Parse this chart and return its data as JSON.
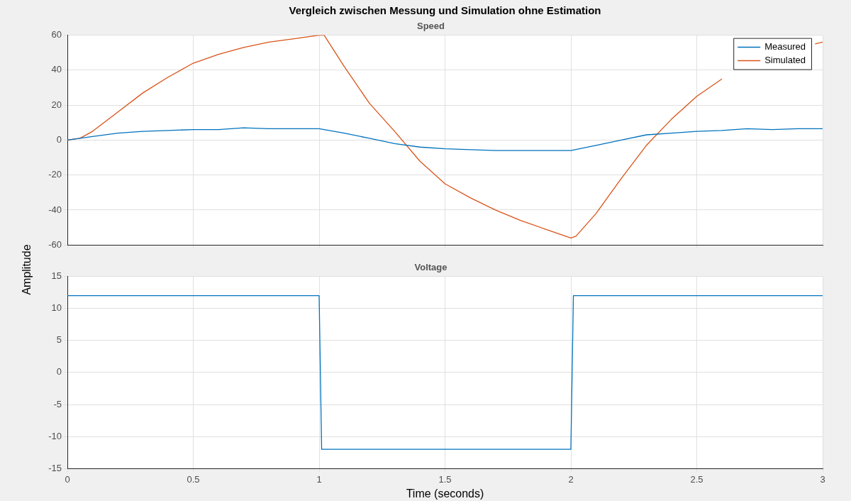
{
  "chart_data": [
    {
      "type": "line",
      "title": "Vergleich zwischen Messung und Simulation ohne Estimation",
      "subtitle": "Speed",
      "ylabel": "Amplitude",
      "xlim": [
        0,
        3
      ],
      "xticks": [
        0,
        0.5,
        1,
        1.5,
        2,
        2.5,
        3
      ],
      "ylim": [
        -60,
        60
      ],
      "yticks": [
        -60,
        -40,
        -20,
        0,
        20,
        40,
        60
      ],
      "grid": true,
      "legend": "top right",
      "tick_labels": "y",
      "line_style": "solid",
      "marker": "none",
      "series": [
        {
          "name": "Measured",
          "color": "#0072bd",
          "x": [
            0,
            0.1,
            0.2,
            0.3,
            0.4,
            0.5,
            0.6,
            0.7,
            0.8,
            0.9,
            1.0,
            1.1,
            1.2,
            1.3,
            1.4,
            1.5,
            1.6,
            1.7,
            1.8,
            1.9,
            2.0,
            2.1,
            2.2,
            2.3,
            2.4,
            2.5,
            2.6,
            2.7,
            2.8,
            2.9,
            3.0
          ],
          "values": [
            0,
            2,
            4,
            5,
            5.5,
            6,
            6,
            7,
            6.5,
            6.5,
            6.5,
            4,
            1,
            -2,
            -4,
            -5,
            -5.5,
            -6,
            -6,
            -6,
            -6,
            -3,
            0,
            3,
            4,
            5,
            5.5,
            6.5,
            6,
            6.5,
            6.5
          ]
        },
        {
          "name": "Simulated",
          "color": "#d95319",
          "x": [
            0,
            0.05,
            0.1,
            0.2,
            0.3,
            0.4,
            0.5,
            0.6,
            0.7,
            0.8,
            0.9,
            1.0,
            1.02,
            1.1,
            1.2,
            1.3,
            1.4,
            1.5,
            1.6,
            1.7,
            1.8,
            1.9,
            2.0,
            2.02,
            2.1,
            2.2,
            2.3,
            2.4,
            2.5,
            2.6,
            2.7,
            2.8,
            2.9,
            2.97,
            3.0
          ],
          "values": [
            0,
            1,
            5,
            16,
            27,
            36,
            44,
            49,
            53,
            56,
            58,
            60,
            60,
            42,
            21,
            5,
            -12,
            -25,
            -33,
            -40,
            -46,
            -51,
            -56,
            -55,
            -42,
            -22,
            -3,
            12,
            25,
            35,
            null,
            null,
            null,
            55,
            56
          ]
        }
      ]
    },
    {
      "type": "line",
      "title": "Voltage",
      "xlabel": "Time (seconds)",
      "xlim": [
        0,
        3
      ],
      "xticks": [
        0,
        0.5,
        1,
        1.5,
        2,
        2.5,
        3
      ],
      "ylim": [
        -15,
        15
      ],
      "yticks": [
        -15,
        -10,
        -5,
        0,
        5,
        10,
        15
      ],
      "grid": true,
      "line_style": "solid",
      "marker": "none",
      "series": [
        {
          "color": "#0072bd",
          "x": [
            0,
            1.0,
            1.01,
            2.0,
            2.01,
            3.0
          ],
          "values": [
            12,
            12,
            -12,
            -12,
            12,
            12
          ]
        }
      ]
    }
  ]
}
